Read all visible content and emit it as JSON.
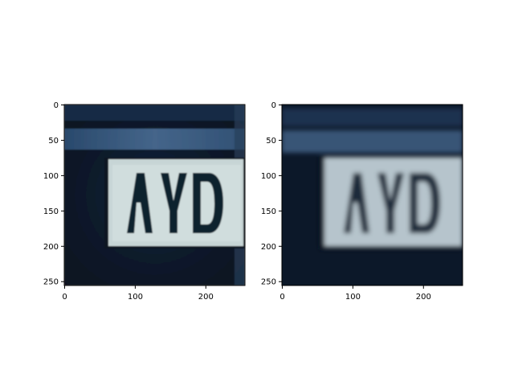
{
  "figure": {
    "panels": [
      {
        "name": "left-panel",
        "variant": "sharp",
        "x_ticks": [
          "0",
          "100",
          "200"
        ],
        "y_ticks": [
          "0",
          "50",
          "100",
          "150",
          "200",
          "250"
        ],
        "plate_text": "AYD"
      },
      {
        "name": "right-panel",
        "variant": "blurred",
        "x_ticks": [
          "0",
          "100",
          "200"
        ],
        "y_ticks": [
          "0",
          "50",
          "100",
          "150",
          "200",
          "250"
        ],
        "plate_text": "AYD"
      }
    ],
    "colors": {
      "background_dark": "#0d1a2e",
      "band_blue": "#3c5f86",
      "plate_light": "#c9d6d8",
      "characters": "#0f1a26"
    }
  }
}
